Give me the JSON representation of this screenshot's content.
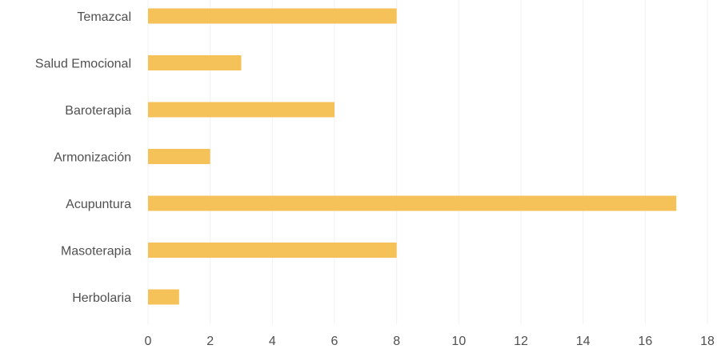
{
  "chart_data": {
    "type": "bar",
    "orientation": "horizontal",
    "categories": [
      "Temazcal",
      "Salud Emocional",
      "Baroterapia",
      "Armonización",
      "Acupuntura",
      "Masoterapia",
      "Herbolaria"
    ],
    "values": [
      8,
      3,
      6,
      2,
      17,
      8,
      1
    ],
    "title": "",
    "xlabel": "",
    "ylabel": "",
    "xlim": [
      0,
      18
    ],
    "xticks": [
      "0",
      "2",
      "4",
      "6",
      "8",
      "10",
      "12",
      "14",
      "16",
      "18"
    ],
    "bar_color": "#f5c25a",
    "grid": true,
    "legend": "none"
  }
}
